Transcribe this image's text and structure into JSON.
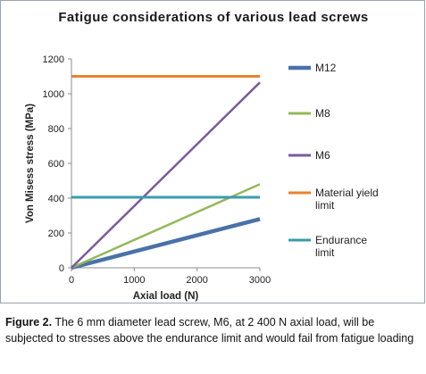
{
  "chart_data": {
    "type": "line",
    "title": "Fatigue considerations of various lead screws",
    "xlabel": "Axial load (N)",
    "ylabel": "Von Misess stress (MPa)",
    "xlim": [
      0,
      3000
    ],
    "ylim": [
      0,
      1200
    ],
    "xticks": [
      0,
      1000,
      2000,
      3000
    ],
    "yticks": [
      0,
      200,
      400,
      600,
      800,
      1000,
      1200
    ],
    "grid": false,
    "legend_position": "right",
    "series": [
      {
        "name": "M12",
        "color": "#4a72a8",
        "x": [
          0,
          3000
        ],
        "y": [
          0,
          280
        ]
      },
      {
        "name": "M8",
        "color": "#93b95a",
        "x": [
          0,
          3000
        ],
        "y": [
          0,
          480
        ]
      },
      {
        "name": "M6",
        "color": "#7a5a9c",
        "x": [
          0,
          3000
        ],
        "y": [
          0,
          1065
        ]
      },
      {
        "name": "Material yield limit",
        "color": "#e8832e",
        "x": [
          0,
          3000
        ],
        "y": [
          1100,
          1100
        ]
      },
      {
        "name": "Endurance limit",
        "color": "#3a9cae",
        "x": [
          0,
          3000
        ],
        "y": [
          405,
          405
        ]
      }
    ]
  },
  "caption": {
    "label": "Figure 2.",
    "text": " The 6 mm diameter lead screw, M6, at 2 400 N axial load, will be subjected to stresses above the endurance limit and would fail from fatigue loading"
  }
}
